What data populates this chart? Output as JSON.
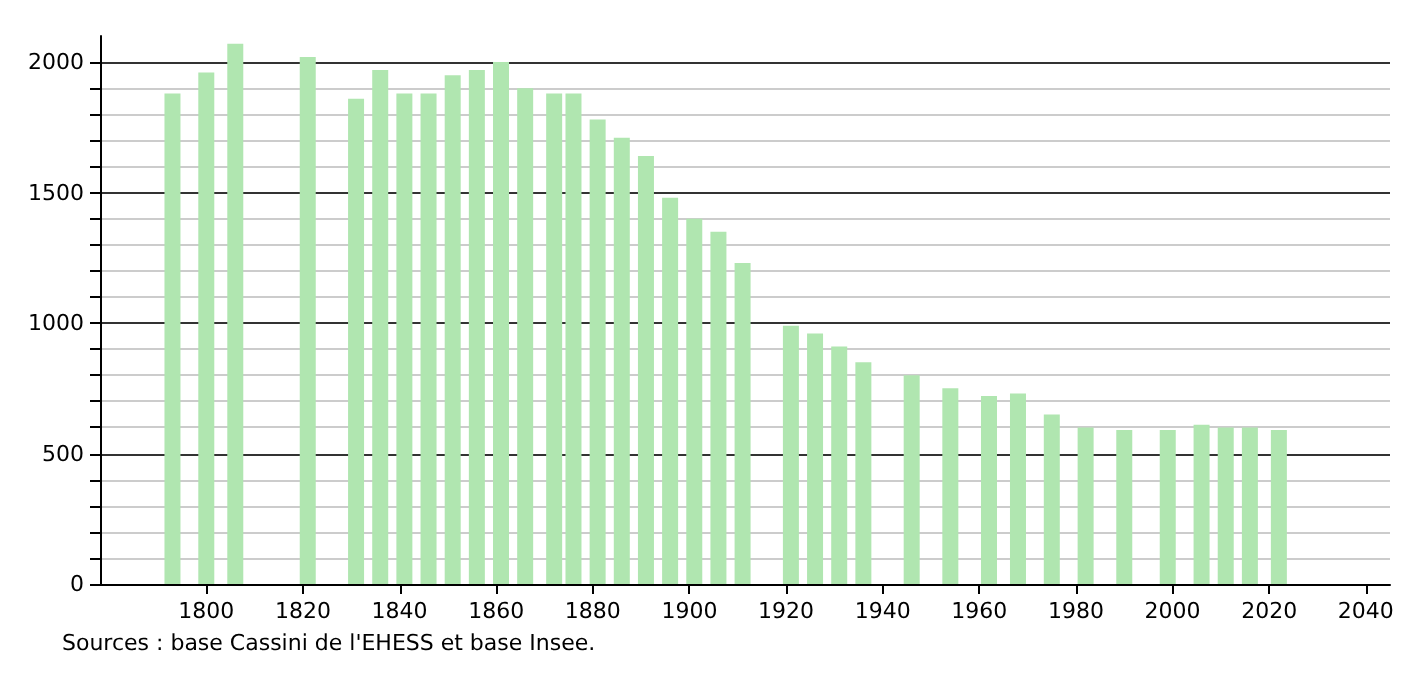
{
  "chart_data": {
    "type": "bar",
    "x": [
      1793,
      1800,
      1806,
      1821,
      1831,
      1836,
      1841,
      1846,
      1851,
      1856,
      1861,
      1866,
      1872,
      1876,
      1881,
      1886,
      1891,
      1896,
      1901,
      1906,
      1911,
      1921,
      1926,
      1931,
      1936,
      1946,
      1954,
      1962,
      1968,
      1975,
      1982,
      1990,
      1999,
      2006,
      2011,
      2016,
      2022
    ],
    "series": [
      {
        "color": "#b0e6b0",
        "values": [
          1880,
          1960,
          2070,
          2020,
          1860,
          1970,
          1880,
          1880,
          1950,
          1970,
          2000,
          1900,
          1880,
          1880,
          1780,
          1710,
          1640,
          1480,
          1400,
          1350,
          1230,
          990,
          960,
          910,
          850,
          800,
          750,
          720,
          730,
          650,
          600,
          590,
          590,
          610,
          600,
          600,
          590
        ]
      }
    ],
    "xlim": [
      1778,
      2045
    ],
    "xticks": [
      1800,
      1820,
      1840,
      1860,
      1880,
      1900,
      1920,
      1940,
      1960,
      1980,
      2000,
      2020,
      2040
    ],
    "ylim": [
      0,
      2100
    ],
    "yticks": [
      0,
      {
        "value": 100,
        "label": null
      },
      {
        "value": 200,
        "label": null
      },
      {
        "value": 300,
        "label": null
      },
      {
        "value": 400,
        "label": null
      },
      500,
      {
        "value": 600,
        "label": null
      },
      {
        "value": 700,
        "label": null
      },
      {
        "value": 800,
        "label": null
      },
      {
        "value": 900,
        "label": null
      },
      1000,
      {
        "value": 1100,
        "label": null
      },
      {
        "value": 1200,
        "label": null
      },
      {
        "value": 1300,
        "label": null
      },
      {
        "value": 1400,
        "label": null
      },
      1500,
      {
        "value": 1600,
        "label": null
      },
      {
        "value": 1700,
        "label": null
      },
      {
        "value": 1800,
        "label": null
      },
      {
        "value": 1900,
        "label": null
      },
      2000
    ],
    "grid": "y",
    "annotations": [
      "Sources : base Cassini de l'EHESS et base Insee."
    ]
  }
}
